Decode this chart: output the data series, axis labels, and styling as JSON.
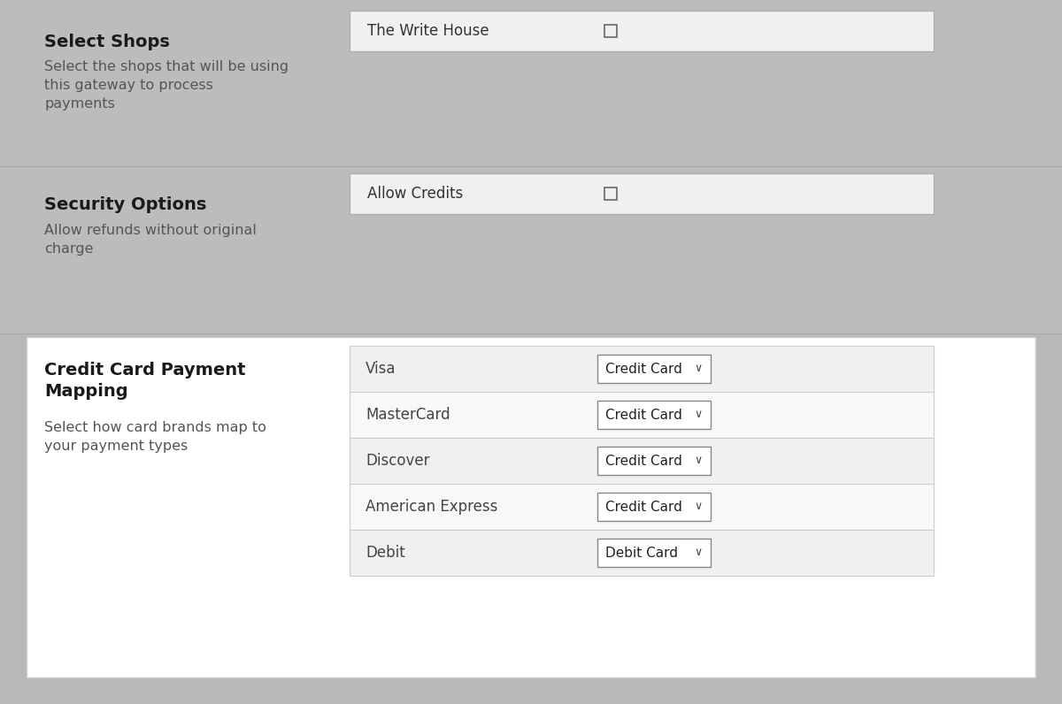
{
  "bg_color": "#b8b8b8",
  "white_panel_color": "#ffffff",
  "section_bg": "#bcbcbc",
  "row_bg": "#f0f0f0",
  "row_bg_white": "#ffffff",
  "row_border": "#cccccc",
  "input_border": "#b0b0b0",
  "dropdown_bg": "#ffffff",
  "divider_color": "#a8a8a8",
  "section1_title": "Select Shops",
  "section1_desc": "Select the shops that will be using\nthis gateway to process\npayments",
  "section1_field_label": "The Write House",
  "section2_title": "Security Options",
  "section2_desc": "Allow refunds without original\ncharge",
  "section2_field_label": "Allow Credits",
  "section3_title_line1": "Credit Card Payment",
  "section3_title_line2": "Mapping",
  "section3_desc": "Select how card brands map to\nyour payment types",
  "section3_rows": [
    {
      "label": "Visa",
      "value": "Credit Card"
    },
    {
      "label": "MasterCard",
      "value": "Credit Card"
    },
    {
      "label": "Discover",
      "value": "Credit Card"
    },
    {
      "label": "American Express",
      "value": "Credit Card"
    },
    {
      "label": "Debit",
      "value": "Debit Card"
    }
  ],
  "title_fontsize": 14,
  "desc_fontsize": 11.5,
  "field_fontsize": 12,
  "row_fontsize": 12,
  "dropdown_fontsize": 11
}
